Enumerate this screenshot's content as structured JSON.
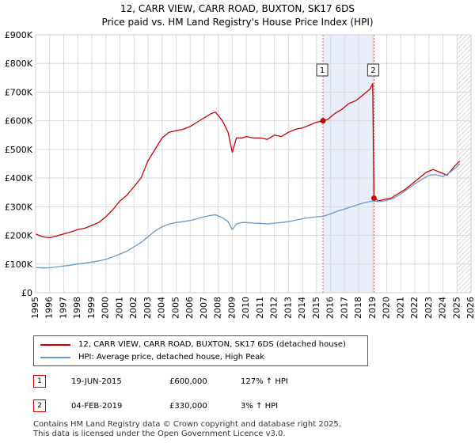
{
  "title_line1": "12, CARR VIEW, CARR ROAD, BUXTON, SK17 6DS",
  "title_line2": "Price paid vs. HM Land Registry's House Price Index (HPI)",
  "chart_data": {
    "type": "line",
    "x_range": [
      1995,
      2026
    ],
    "ylim": [
      0,
      900000
    ],
    "y_ticks": [
      0,
      100000,
      200000,
      300000,
      400000,
      500000,
      600000,
      700000,
      800000,
      900000
    ],
    "y_tick_labels": [
      "£0",
      "£100K",
      "£200K",
      "£300K",
      "£400K",
      "£500K",
      "£600K",
      "£700K",
      "£800K",
      "£900K"
    ],
    "x_ticks": [
      1995,
      1996,
      1997,
      1998,
      1999,
      2000,
      2001,
      2002,
      2003,
      2004,
      2005,
      2006,
      2007,
      2008,
      2009,
      2010,
      2011,
      2012,
      2013,
      2014,
      2015,
      2016,
      2017,
      2018,
      2019,
      2020,
      2021,
      2022,
      2023,
      2024,
      2025,
      2026
    ],
    "x_tick_labels": [
      "1995",
      "1996",
      "1997",
      "1998",
      "1999",
      "2000",
      "2001",
      "2002",
      "2003",
      "2004",
      "2005",
      "2006",
      "2007",
      "2008",
      "2009",
      "2010",
      "2011",
      "2012",
      "2013",
      "2014",
      "2015",
      "2016",
      "2017",
      "2018",
      "2019",
      "2020",
      "2021",
      "2022",
      "2023",
      "2024",
      "2025",
      "2026"
    ],
    "grid": true,
    "shaded_span": [
      2015.46,
      2019.09
    ],
    "hatched_from": 2025.0,
    "series": [
      {
        "name": "12, CARR VIEW, CARR ROAD, BUXTON, SK17 6DS (detached house)",
        "color": "#cc0000",
        "x": [
          1995.0,
          1995.5,
          1996.0,
          1996.5,
          1997.0,
          1997.5,
          1998.0,
          1998.5,
          1999.0,
          1999.5,
          2000.0,
          2000.5,
          2001.0,
          2001.5,
          2002.0,
          2002.5,
          2003.0,
          2003.5,
          2004.0,
          2004.5,
          2005.0,
          2005.5,
          2006.0,
          2006.5,
          2007.0,
          2007.5,
          2007.8,
          2008.3,
          2008.7,
          2009.0,
          2009.3,
          2009.7,
          2010.0,
          2010.5,
          2011.0,
          2011.5,
          2012.0,
          2012.5,
          2013.0,
          2013.5,
          2014.0,
          2014.5,
          2015.0,
          2015.46,
          2015.8,
          2016.3,
          2016.8,
          2017.3,
          2017.8,
          2018.3,
          2018.8,
          2019.0,
          2019.09,
          2019.4,
          2019.8,
          2020.3,
          2020.8,
          2021.3,
          2021.8,
          2022.3,
          2022.8,
          2023.3,
          2023.8,
          2024.3,
          2024.8,
          2025.2
        ],
        "values": [
          205000,
          195000,
          192000,
          198000,
          205000,
          212000,
          220000,
          225000,
          235000,
          245000,
          265000,
          290000,
          320000,
          340000,
          370000,
          400000,
          460000,
          500000,
          540000,
          560000,
          565000,
          570000,
          580000,
          595000,
          610000,
          625000,
          630000,
          600000,
          560000,
          490000,
          540000,
          540000,
          545000,
          540000,
          540000,
          535000,
          550000,
          545000,
          560000,
          570000,
          575000,
          585000,
          595000,
          600000,
          605000,
          625000,
          640000,
          660000,
          670000,
          690000,
          710000,
          730000,
          330000,
          320000,
          325000,
          330000,
          345000,
          360000,
          380000,
          400000,
          420000,
          430000,
          420000,
          410000,
          440000,
          460000
        ]
      },
      {
        "name": "HPI: Average price, detached house, High Peak",
        "color": "#6699cc",
        "x": [
          1995.0,
          1995.5,
          1996.0,
          1996.5,
          1997.0,
          1997.5,
          1998.0,
          1998.5,
          1999.0,
          1999.5,
          2000.0,
          2000.5,
          2001.0,
          2001.5,
          2002.0,
          2002.5,
          2003.0,
          2003.5,
          2004.0,
          2004.5,
          2005.0,
          2005.5,
          2006.0,
          2006.5,
          2007.0,
          2007.5,
          2007.8,
          2008.3,
          2008.7,
          2009.0,
          2009.3,
          2009.7,
          2010.0,
          2010.5,
          2011.0,
          2011.5,
          2012.0,
          2012.5,
          2013.0,
          2013.5,
          2014.0,
          2014.5,
          2015.0,
          2015.5,
          2016.0,
          2016.5,
          2017.0,
          2017.5,
          2018.0,
          2018.5,
          2019.0,
          2019.5,
          2020.0,
          2020.5,
          2021.0,
          2021.5,
          2022.0,
          2022.5,
          2023.0,
          2023.5,
          2024.0,
          2024.5,
          2025.0,
          2025.2
        ],
        "values": [
          88000,
          86000,
          87000,
          90000,
          93000,
          96000,
          100000,
          103000,
          107000,
          111000,
          116000,
          125000,
          135000,
          145000,
          160000,
          175000,
          195000,
          215000,
          230000,
          240000,
          245000,
          248000,
          252000,
          258000,
          265000,
          270000,
          272000,
          262000,
          248000,
          220000,
          240000,
          245000,
          245000,
          243000,
          242000,
          240000,
          243000,
          245000,
          248000,
          253000,
          258000,
          262000,
          265000,
          267000,
          275000,
          285000,
          292000,
          300000,
          308000,
          315000,
          320000,
          318000,
          322000,
          330000,
          345000,
          362000,
          380000,
          395000,
          410000,
          412000,
          405000,
          420000,
          440000,
          450000
        ]
      }
    ],
    "sales": [
      {
        "label": "1",
        "x": 2015.46,
        "value": 600000
      },
      {
        "label": "2",
        "x": 2019.09,
        "value": 330000
      }
    ]
  },
  "legend": {
    "property": "12, CARR VIEW, CARR ROAD, BUXTON, SK17 6DS (detached house)",
    "hpi": "HPI: Average price, detached house, High Peak"
  },
  "sales_table": [
    {
      "num": "1",
      "date": "19-JUN-2015",
      "price": "£600,000",
      "hpi": "127% ↑ HPI"
    },
    {
      "num": "2",
      "date": "04-FEB-2019",
      "price": "£330,000",
      "hpi": "3% ↑ HPI"
    }
  ],
  "footer": {
    "line1": "Contains HM Land Registry data © Crown copyright and database right 2025.",
    "line2": "This data is licensed under the Open Government Licence v3.0."
  },
  "colors": {
    "property": "#cc0000",
    "hpi": "#6699cc",
    "shade": "#e8eefa",
    "grid": "#d9d9d9"
  }
}
